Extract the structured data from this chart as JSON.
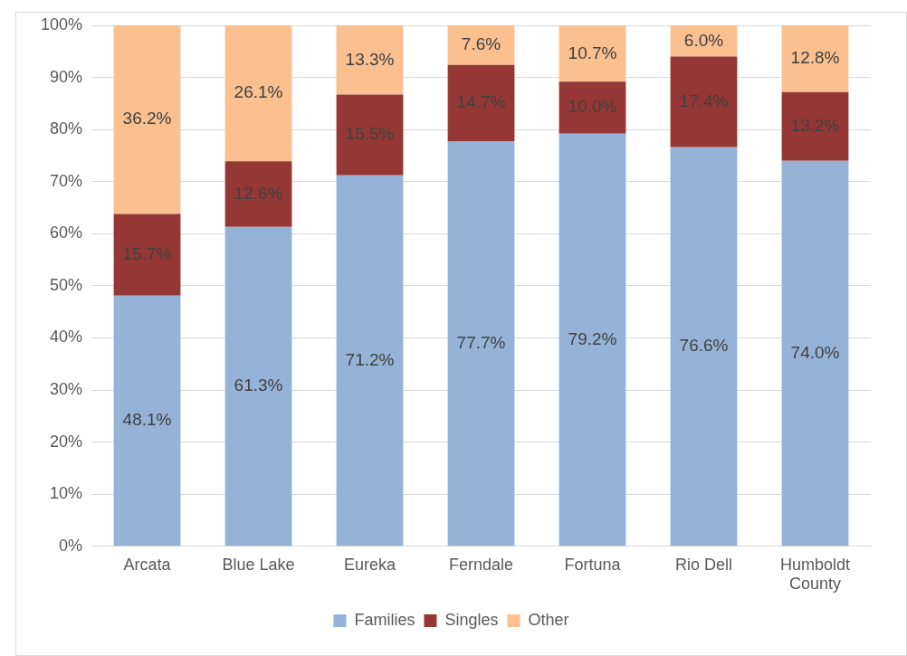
{
  "chart_data": {
    "type": "bar",
    "stacked": true,
    "categories": [
      "Arcata",
      "Blue Lake",
      "Eureka",
      "Ferndale",
      "Fortuna",
      "Rio Dell",
      "Humboldt County"
    ],
    "series": [
      {
        "name": "Families",
        "color": "#95b3d7",
        "values": [
          48.1,
          61.3,
          71.2,
          77.7,
          79.2,
          76.6,
          74.0
        ],
        "value_labels": [
          "48.1%",
          "61.3%",
          "71.2%",
          "77.7%",
          "79.2%",
          "76.6%",
          "74.0%"
        ]
      },
      {
        "name": "Singles",
        "color": "#953735",
        "values": [
          15.7,
          12.6,
          15.5,
          14.7,
          10.0,
          17.4,
          13.2
        ],
        "value_labels": [
          "15.7%",
          "12.6%",
          "15.5%",
          "14.7%",
          "10.0%",
          "17.4%",
          "13.2%"
        ]
      },
      {
        "name": "Other",
        "color": "#fac090",
        "values": [
          36.2,
          26.1,
          13.3,
          7.6,
          10.7,
          6.0,
          12.8
        ],
        "value_labels": [
          "36.2%",
          "26.1%",
          "13.3%",
          "7.6%",
          "10.7%",
          "6.0%",
          "12.8%"
        ]
      }
    ],
    "ylim": [
      0,
      100
    ],
    "yticks": [
      {
        "value": 0,
        "label": "0%"
      },
      {
        "value": 10,
        "label": "10%"
      },
      {
        "value": 20,
        "label": "20%"
      },
      {
        "value": 30,
        "label": "30%"
      },
      {
        "value": 40,
        "label": "40%"
      },
      {
        "value": 50,
        "label": "50%"
      },
      {
        "value": 60,
        "label": "60%"
      },
      {
        "value": 70,
        "label": "70%"
      },
      {
        "value": 80,
        "label": "80%"
      },
      {
        "value": 90,
        "label": "90%"
      },
      {
        "value": 100,
        "label": "100%"
      }
    ],
    "grid": "y",
    "legend": "bottom"
  }
}
